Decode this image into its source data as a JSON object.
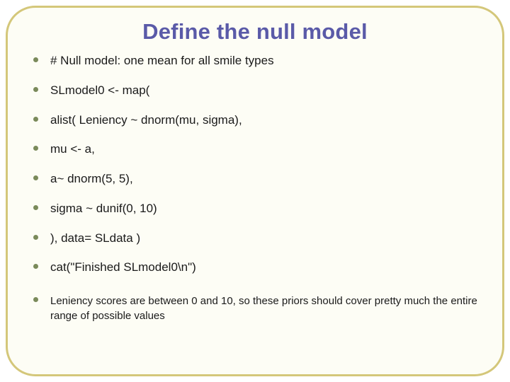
{
  "colors": {
    "title": "#5a5aa8",
    "bullet": "#7a8a5a",
    "text": "#1a1a1a",
    "border": "#d4c77a",
    "background": "#fdfdf5"
  },
  "title": "Define the null model",
  "bullets": [
    {
      "text": "# Null model: one mean for all smile types",
      "note": false
    },
    {
      "text": "SLmodel0 <- map(",
      "note": false
    },
    {
      "text": "alist( Leniency ~ dnorm(mu, sigma),",
      "note": false
    },
    {
      "text": "mu <- a,",
      "note": false
    },
    {
      "text": "a~ dnorm(5, 5),",
      "note": false
    },
    {
      "text": "sigma ~ dunif(0, 10)",
      "note": false
    },
    {
      "text": "), data= SLdata )",
      "note": false
    },
    {
      "text": "cat(\"Finished SLmodel0\\n\")",
      "note": false
    },
    {
      "text": "Leniency scores are between 0 and 10, so these priors should cover pretty much the entire range of possible values",
      "note": true
    }
  ]
}
